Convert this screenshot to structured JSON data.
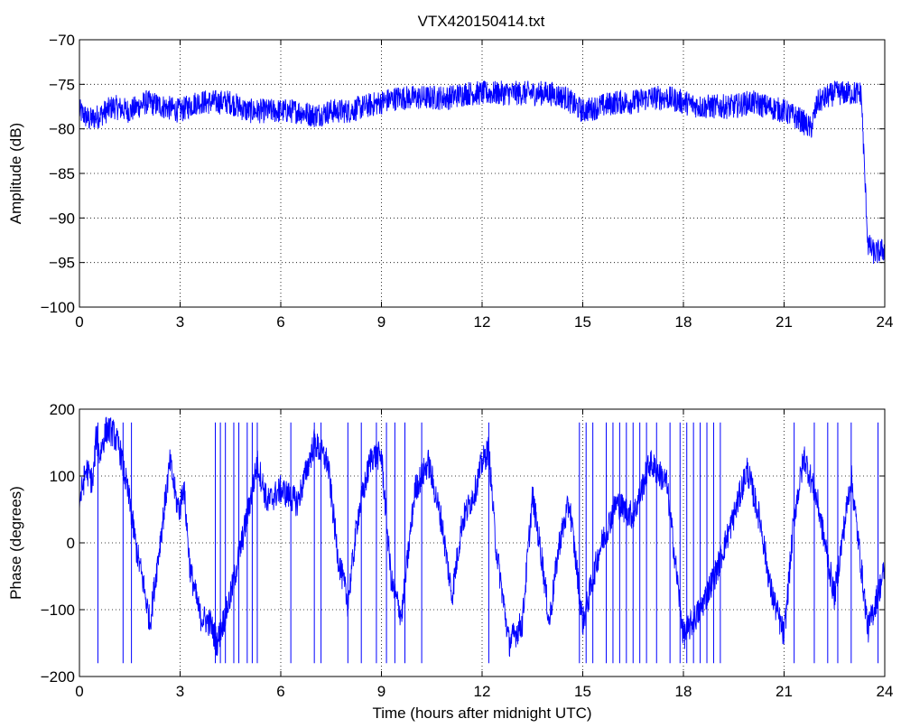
{
  "figure": {
    "title": "VTX420150414.txt"
  },
  "colors": {
    "line": "#0000ff",
    "axis": "#000000",
    "grid": "#000000",
    "background": "#ffffff"
  },
  "chart_data": [
    {
      "type": "line",
      "title": "VTX420150414.txt",
      "xlabel": "",
      "ylabel": "Amplitude (dB)",
      "xlim": [
        0,
        24
      ],
      "ylim": [
        -100,
        -70
      ],
      "xticks": [
        0,
        3,
        6,
        9,
        12,
        15,
        18,
        21,
        24
      ],
      "yticks": [
        -100,
        -95,
        -90,
        -85,
        -80,
        -75,
        -70
      ],
      "xtick_labels": [
        "0",
        "3",
        "6",
        "9",
        "12",
        "15",
        "18",
        "21",
        "24"
      ],
      "ytick_labels": [
        "−100",
        "−95",
        "−90",
        "−85",
        "−80",
        "−75",
        "−70"
      ],
      "grid": true,
      "series": [
        {
          "x": [
            0,
            0.3,
            0.6,
            1.0,
            1.5,
            2.0,
            2.5,
            3.0,
            3.5,
            4.0,
            4.5,
            5.0,
            5.5,
            6.0,
            6.5,
            7.0,
            7.5,
            8.0,
            8.5,
            9.0,
            9.5,
            10.0,
            10.5,
            11.0,
            11.5,
            12.0,
            12.5,
            13.0,
            13.5,
            14.0,
            14.5,
            14.8,
            15.0,
            15.5,
            16.0,
            16.5,
            17.0,
            17.5,
            18.0,
            18.5,
            19.0,
            19.5,
            20.0,
            20.5,
            21.0,
            21.5,
            21.8,
            22.0,
            22.5,
            23.0,
            23.3,
            23.4,
            23.5,
            23.7,
            24.0
          ],
          "y": [
            -78,
            -79,
            -78.5,
            -77.5,
            -78,
            -77,
            -77.5,
            -78,
            -77,
            -77,
            -77,
            -78,
            -78,
            -78,
            -78,
            -78.5,
            -78,
            -78,
            -77.5,
            -77,
            -76.5,
            -76.5,
            -76.5,
            -76.5,
            -76,
            -76,
            -76,
            -76,
            -76,
            -76,
            -76.5,
            -77.5,
            -78,
            -77.5,
            -77,
            -77,
            -76.5,
            -76.5,
            -77,
            -77.5,
            -77.5,
            -77.5,
            -77,
            -77.5,
            -78,
            -79,
            -80,
            -77,
            -76,
            -76,
            -76,
            -85,
            -93,
            -94,
            -93.5
          ],
          "noise": 1.4
        }
      ]
    },
    {
      "type": "line",
      "title": "",
      "xlabel": "Time (hours after midnight UTC)",
      "ylabel": "Phase (degrees)",
      "xlim": [
        0,
        24
      ],
      "ylim": [
        -200,
        200
      ],
      "xticks": [
        0,
        3,
        6,
        9,
        12,
        15,
        18,
        21,
        24
      ],
      "yticks": [
        -200,
        -100,
        0,
        100,
        200
      ],
      "xtick_labels": [
        "0",
        "3",
        "6",
        "9",
        "12",
        "15",
        "18",
        "21",
        "24"
      ],
      "ytick_labels": [
        "−200",
        "−100",
        "0",
        "100",
        "200"
      ],
      "grid": true,
      "series": [
        {
          "x": [
            0,
            0.2,
            0.4,
            0.5,
            0.6,
            0.8,
            1.0,
            1.2,
            1.5,
            1.7,
            1.9,
            2.1,
            2.3,
            2.5,
            2.7,
            2.9,
            3.0,
            3.1,
            3.3,
            3.6,
            3.9,
            4.1,
            4.5,
            5.0,
            5.3,
            5.6,
            6.0,
            6.5,
            7.0,
            7.4,
            7.7,
            8.0,
            8.3,
            8.7,
            9.0,
            9.3,
            9.6,
            10.0,
            10.4,
            10.8,
            11.1,
            11.4,
            11.8,
            12.0,
            12.2,
            12.4,
            12.8,
            13.2,
            13.5,
            13.8,
            14.0,
            14.3,
            14.6,
            15.0,
            15.5,
            16.0,
            16.5,
            17.0,
            17.5,
            18.0,
            18.5,
            19.0,
            19.5,
            19.9,
            20.3,
            20.6,
            21.0,
            21.3,
            21.6,
            22.0,
            22.5,
            23.0,
            23.5,
            24.0
          ],
          "y": [
            60,
            110,
            90,
            160,
            130,
            170,
            165,
            140,
            60,
            -10,
            -60,
            -120,
            -40,
            40,
            120,
            60,
            50,
            90,
            -40,
            -110,
            -120,
            -150,
            -80,
            40,
            120,
            60,
            80,
            60,
            150,
            120,
            -20,
            -90,
            40,
            130,
            130,
            -60,
            -110,
            80,
            120,
            30,
            -80,
            30,
            80,
            120,
            140,
            0,
            -150,
            -120,
            70,
            -30,
            -120,
            0,
            60,
            -120,
            -10,
            60,
            40,
            120,
            90,
            -140,
            -100,
            -40,
            40,
            110,
            30,
            -70,
            -140,
            40,
            130,
            60,
            -80,
            100,
            -130,
            -40
          ],
          "noise": 22,
          "wraps": [
            0.55,
            1.3,
            1.55,
            4.05,
            4.2,
            4.35,
            4.6,
            4.75,
            5.0,
            5.15,
            5.3,
            6.3,
            7.0,
            7.2,
            8.0,
            8.4,
            8.85,
            9.15,
            9.4,
            9.7,
            10.2,
            12.2,
            14.9,
            15.1,
            15.3,
            15.7,
            15.9,
            16.1,
            16.3,
            16.5,
            16.7,
            16.9,
            17.2,
            17.6,
            17.9,
            18.1,
            18.3,
            18.5,
            18.7,
            18.9,
            19.1,
            21.3,
            21.9,
            22.3,
            22.6,
            23.0,
            23.8
          ]
        }
      ]
    }
  ]
}
